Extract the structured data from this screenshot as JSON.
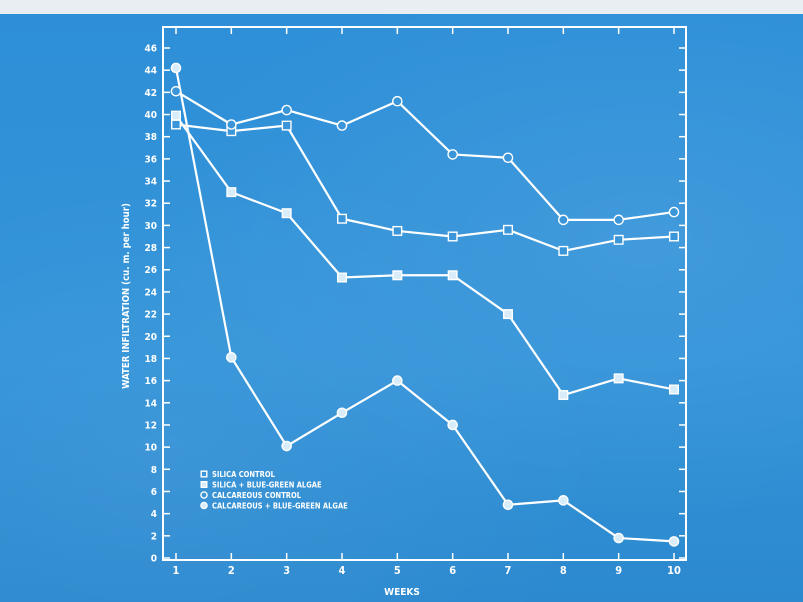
{
  "chart_data": {
    "type": "line",
    "title": "",
    "xlabel": "WEEKS",
    "ylabel": "WATER INFILTRATION (cu. m. per hour)",
    "x": [
      1,
      2,
      3,
      4,
      5,
      6,
      7,
      8,
      9,
      10
    ],
    "xlim": [
      1,
      10
    ],
    "ylim": [
      0,
      46
    ],
    "yticks": [
      0,
      2,
      4,
      6,
      8,
      10,
      12,
      14,
      16,
      18,
      20,
      22,
      24,
      26,
      28,
      30,
      32,
      34,
      36,
      38,
      40,
      42,
      44,
      46
    ],
    "grid": false,
    "legend_position": "bottom-left",
    "colors": {
      "line": "#ffffff",
      "background": "#2f8fd6",
      "top_strip": "#e8eef2"
    },
    "series": [
      {
        "name": "SILICA CONTROL",
        "marker": "square-open",
        "values": [
          39.1,
          38.5,
          39.0,
          30.6,
          29.5,
          29.0,
          29.6,
          27.7,
          28.7,
          29.0
        ]
      },
      {
        "name": "SILICA + BLUE-GREEN ALGAE",
        "marker": "square-filled",
        "values": [
          39.9,
          33.0,
          31.1,
          25.3,
          25.5,
          25.5,
          22.0,
          14.7,
          16.2,
          15.2
        ]
      },
      {
        "name": "CALCAREOUS CONTROL",
        "marker": "circle-open",
        "values": [
          42.1,
          39.1,
          40.4,
          39.0,
          41.2,
          36.4,
          36.1,
          30.5,
          30.5,
          31.2
        ]
      },
      {
        "name": "CALCAREOUS + BLUE-GREEN ALGAE",
        "marker": "circle-filled",
        "values": [
          44.2,
          18.1,
          10.1,
          13.1,
          16.0,
          12.0,
          4.8,
          5.2,
          1.8,
          1.5
        ]
      }
    ]
  }
}
